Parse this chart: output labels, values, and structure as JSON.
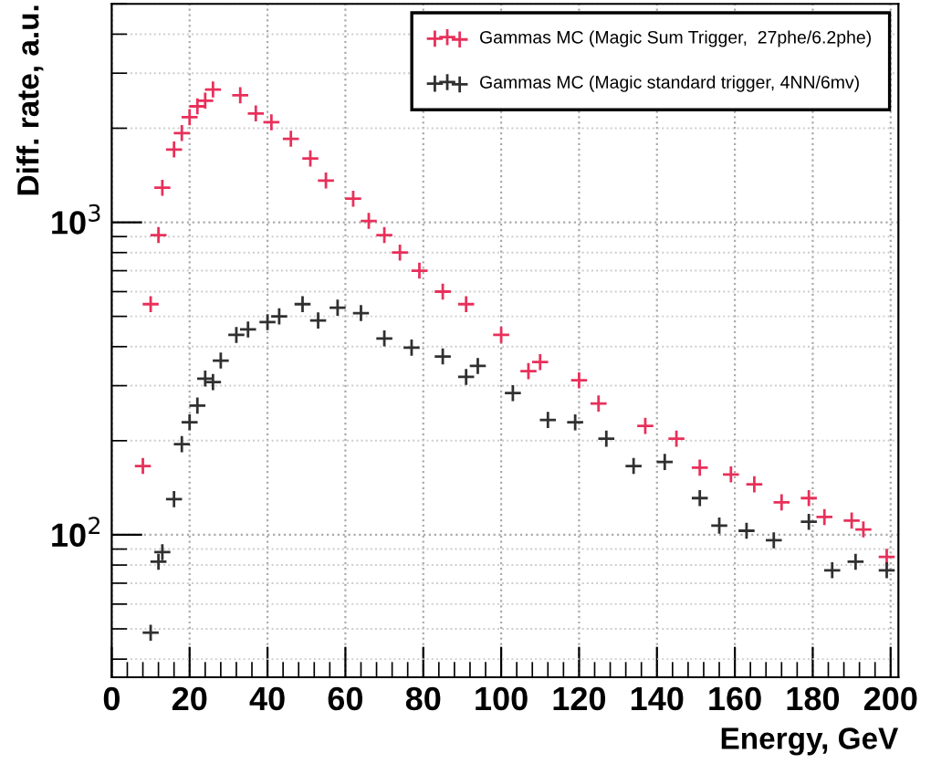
{
  "chart_data": {
    "type": "scatter",
    "xlabel": "Energy, GeV",
    "ylabel": "Diff. rate, a.u.",
    "xlim": [
      0,
      202
    ],
    "xticks": [
      0,
      20,
      40,
      60,
      80,
      100,
      120,
      140,
      160,
      180,
      200
    ],
    "ylim": [
      35,
      5000
    ],
    "yticks": [
      {
        "value": 100,
        "label": "10$^{2}$"
      },
      {
        "value": 1000,
        "label": "10$^{3}$"
      }
    ],
    "log": "y",
    "grid": true,
    "legend": "top right",
    "marker": "cross",
    "series": [
      {
        "name": "Gammas MC (Magic Sum Trigger,  27phe/6.2phe)",
        "color": "#e8305a",
        "x": [
          8,
          10,
          12,
          13,
          16,
          18,
          20,
          22,
          24,
          26,
          33,
          37,
          41,
          46,
          51,
          55,
          62,
          66,
          70,
          74,
          79,
          85,
          91,
          100,
          107,
          110,
          120,
          125,
          137,
          145,
          151,
          159,
          165,
          172,
          179,
          183,
          190,
          193,
          199
        ],
        "values": [
          166,
          547,
          910,
          1290,
          1710,
          1930,
          2170,
          2350,
          2450,
          2660,
          2550,
          2230,
          2090,
          1850,
          1600,
          1360,
          1190,
          1010,
          910,
          800,
          700,
          600,
          547,
          436,
          334,
          357,
          312,
          263,
          223,
          203,
          164,
          156,
          145,
          127,
          131,
          114,
          111,
          104,
          85
        ]
      },
      {
        "name": "Gammas MC (Magic standard trigger, 4NN/6mv)",
        "color": "#303030",
        "x": [
          10,
          12,
          13,
          16,
          18,
          20,
          22,
          24,
          26,
          28,
          32,
          35,
          40,
          43,
          49,
          53,
          58,
          64,
          70,
          77,
          85,
          91,
          94,
          103,
          112,
          119,
          127,
          134,
          142,
          151,
          156,
          163,
          170,
          179,
          185,
          191,
          199
        ],
        "values": [
          48.6,
          82,
          88,
          130,
          195,
          229,
          259,
          316,
          308,
          361,
          436,
          454,
          479,
          500,
          547,
          485,
          533,
          512,
          425,
          397,
          372,
          320,
          347,
          284,
          233,
          229,
          203,
          166,
          171,
          131,
          107,
          103,
          96,
          110,
          77,
          82,
          77
        ]
      }
    ]
  }
}
